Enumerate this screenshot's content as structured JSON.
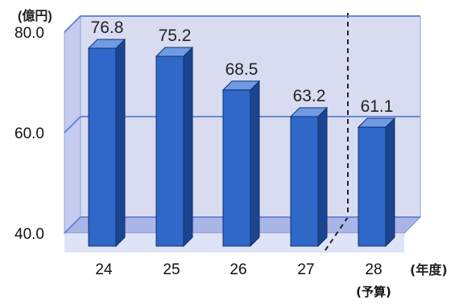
{
  "chart_data": {
    "type": "bar",
    "y_unit_label": "(億円)",
    "x_unit_label": "(年度)",
    "categories": [
      "24",
      "25",
      "26",
      "27",
      "28"
    ],
    "category_sublabels": [
      "",
      "",
      "",
      "",
      "(予算)"
    ],
    "values": [
      76.8,
      75.2,
      68.5,
      63.2,
      61.1
    ],
    "value_labels": [
      "76.8",
      "75.2",
      "68.5",
      "63.2",
      "61.1"
    ],
    "y_ticks": [
      "40.0",
      "60.0",
      "80.0"
    ],
    "ylim": [
      40,
      80
    ],
    "grid": true,
    "style": "3d-bar",
    "colors": {
      "bar_front": "#2f68c8",
      "bar_side": "#1c4591",
      "bar_top": "#6f9be3",
      "wall": "#d9dcf1",
      "floor": "#a9b5e6",
      "grid": "#6a88d6"
    }
  }
}
